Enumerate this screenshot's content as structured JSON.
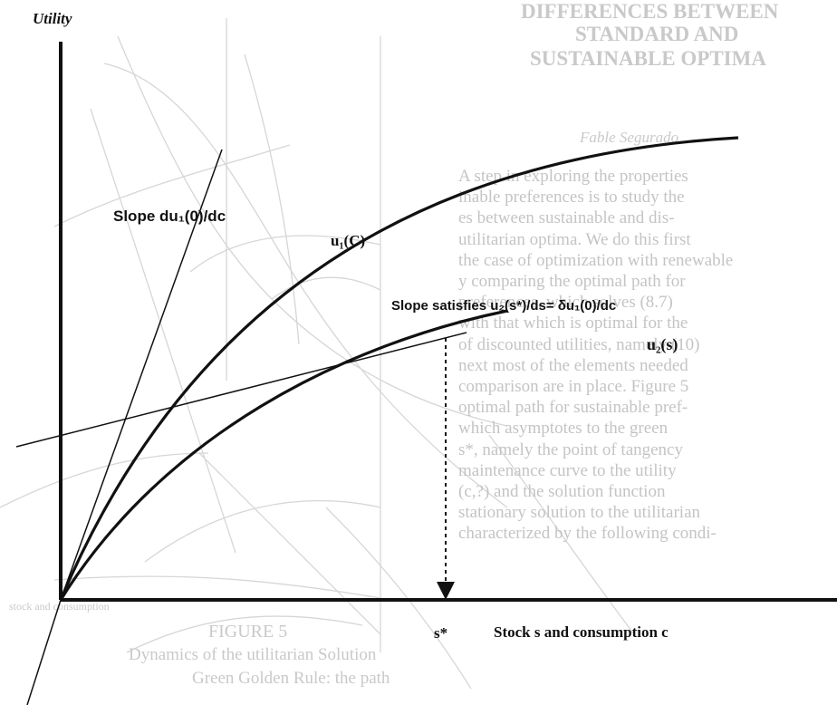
{
  "diagram": {
    "axis_y_label": "Utility",
    "axis_x_label": "Stock s and consumption c",
    "s_star_label": "s*",
    "slope_du1_label": "Slope du₁(0)/dc",
    "u1_label": "u₁(C)",
    "slope_satisfies_label": "Slope satisfies u₂(s*)/ds= δu₁(0)/dc",
    "u2_label": "u₂(s)"
  },
  "background_page": {
    "title_line_1": "DIFFERENCES BETWEEN",
    "title_line_2": "STANDARD AND",
    "title_line_3": "SUSTAINABLE OPTIMA",
    "author": "Fable Segurado",
    "body_lines": [
      "A step in exploring the properties",
      "inable preferences is to study the",
      "es between sustainable and dis-",
      "utilitarian optima. We do this first",
      "the case of optimization with renewable",
      "y comparing the optimal path for",
      "preferences, which solves (8.7)",
      "with that which is optimal for the",
      "of discounted utilities, namely (10)",
      "next most of the elements needed",
      "comparison are in place. Figure 5",
      "optimal path for sustainable pref-",
      "which asymptotes to the green",
      "s*, namely the point of tangency",
      "maintenance curve to the utility",
      "(c,?) and the solution function",
      "stationary solution to the utilitarian",
      "characterized by the following condi-"
    ],
    "figure_label": "FIGURE 5",
    "caption_line_1": "Dynamics of the utilitarian Solution",
    "caption_line_2": "Green Golden Rule: the path",
    "bottom_left_label": "stock and consumption"
  }
}
